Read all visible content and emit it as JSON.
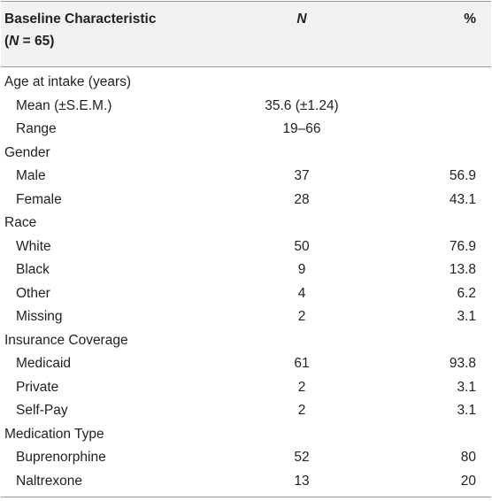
{
  "header": {
    "label_line1": "Baseline Characteristic",
    "label_line2_open": "(",
    "label_line2_n": "N",
    "label_line2_rest": " = 65)",
    "n": "N",
    "pct": "%"
  },
  "rows": [
    {
      "label": "Age at intake (years)",
      "n": "",
      "pct": ""
    },
    {
      "label": "Mean (±S.E.M.)",
      "n": "35.6 (±1.24)",
      "pct": ""
    },
    {
      "label": "Range",
      "n": "19–66",
      "pct": ""
    },
    {
      "label": "Gender",
      "n": "",
      "pct": ""
    },
    {
      "label": "Male",
      "n": "37",
      "pct": "56.9"
    },
    {
      "label": "Female",
      "n": "28",
      "pct": "43.1"
    },
    {
      "label": "Race",
      "n": "",
      "pct": ""
    },
    {
      "label": "White",
      "n": "50",
      "pct": "76.9"
    },
    {
      "label": "Black",
      "n": "9",
      "pct": "13.8"
    },
    {
      "label": "Other",
      "n": "4",
      "pct": "6.2"
    },
    {
      "label": "Missing",
      "n": "2",
      "pct": "3.1"
    },
    {
      "label": "Insurance Coverage",
      "n": "",
      "pct": ""
    },
    {
      "label": "Medicaid",
      "n": "61",
      "pct": "93.8"
    },
    {
      "label": "Private",
      "n": "2",
      "pct": "3.1"
    },
    {
      "label": "Self-Pay",
      "n": "2",
      "pct": "3.1"
    },
    {
      "label": "Medication Type",
      "n": "",
      "pct": ""
    },
    {
      "label": "Buprenorphine",
      "n": "52",
      "pct": "80"
    },
    {
      "label": "Naltrexone",
      "n": "13",
      "pct": "20"
    }
  ]
}
